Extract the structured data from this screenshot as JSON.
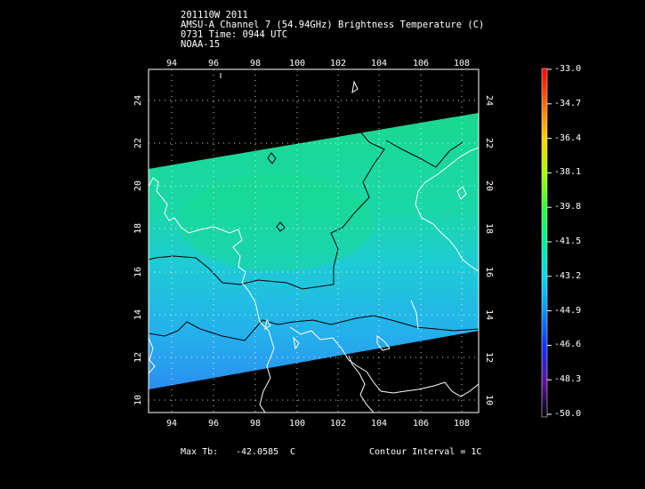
{
  "header": {
    "line1": "201110W 2011",
    "line2": "AMSU-A Channel 7 (54.94GHz) Brightness Temperature (C)",
    "line3": "0731 Time: 0944 UTC",
    "line4": "NOAA-15"
  },
  "map": {
    "lon_ticks": [
      "94",
      "96",
      "98",
      "100",
      "102",
      "104",
      "106",
      "108"
    ],
    "lat_ticks": [
      "10",
      "12",
      "14",
      "16",
      "18",
      "20",
      "22",
      "24"
    ],
    "lon_range": [
      92.8,
      108.8
    ],
    "lat_range": [
      9.4,
      25.6
    ]
  },
  "colorbar": {
    "labels": [
      "-33.0",
      "-34.7",
      "-36.4",
      "-38.1",
      "-39.8",
      "-41.5",
      "-43.2",
      "-44.9",
      "-46.6",
      "-48.3",
      "-50.0"
    ],
    "min": -50.0,
    "max": -33.0
  },
  "footer": {
    "max_tb_label": "Max Tb:",
    "max_tb_value": "-42.0585",
    "max_tb_unit": "C",
    "contour_interval": "Contour Interval = 1C"
  },
  "colors": {
    "background": "#000000",
    "swath_high": "#17d89a",
    "swath_mid": "#1fc6e3",
    "swath_low": "#2a8cf0",
    "coastline": "#ffffff",
    "contour": "#000000"
  }
}
